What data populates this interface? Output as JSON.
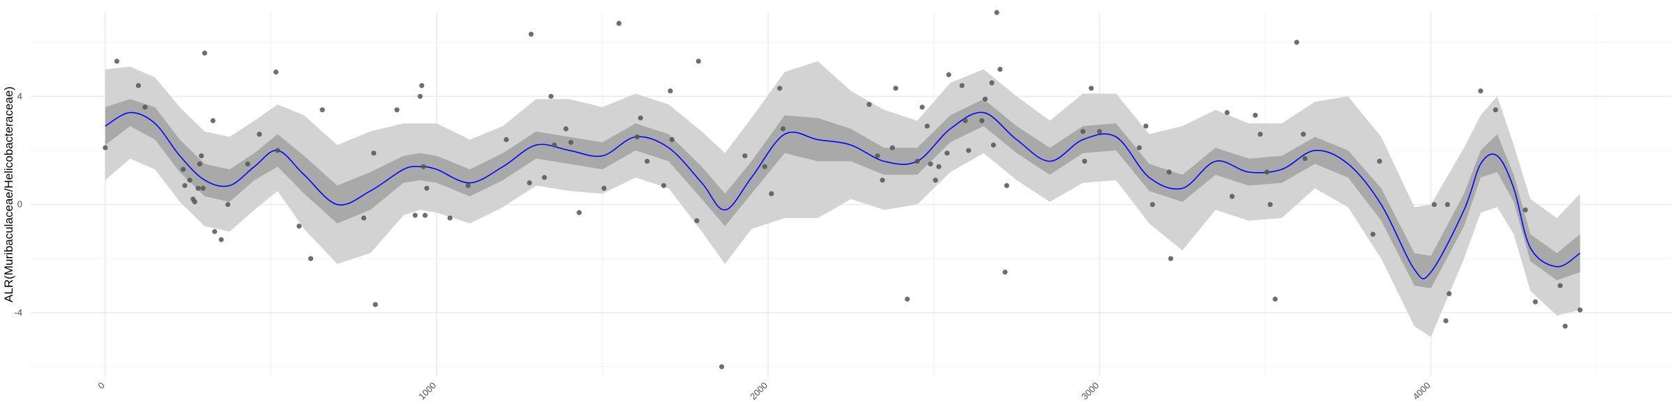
{
  "chart_data": {
    "type": "scatter",
    "title": "",
    "xlabel": "",
    "ylabel": "ALR(Muribaculaceae/Helicobacteraceae)",
    "xlim": [
      -225,
      4725
    ],
    "ylim": [
      -6.35,
      7.1
    ],
    "x_ticks": [
      0,
      1000,
      2000,
      3000,
      4000
    ],
    "x_tick_labels": [
      "0",
      "1000",
      "2000",
      "3000",
      "4000"
    ],
    "y_ticks": [
      -4,
      0,
      4
    ],
    "y_tick_labels": [
      "-4",
      "0",
      "4"
    ],
    "grid": true,
    "colors": {
      "points": "#555555",
      "smooth_line": "#0000ff",
      "inner_band": "#a9a9a9",
      "outer_band": "#d3d3d3",
      "grid": "#ebebeb"
    },
    "points": [
      [
        0,
        2.1
      ],
      [
        35,
        5.3
      ],
      [
        100,
        4.4
      ],
      [
        120,
        3.6
      ],
      [
        235,
        1.3
      ],
      [
        240,
        0.7
      ],
      [
        255,
        0.9
      ],
      [
        265,
        0.2
      ],
      [
        270,
        0.1
      ],
      [
        280,
        0.6
      ],
      [
        285,
        1.5
      ],
      [
        290,
        1.8
      ],
      [
        295,
        0.6
      ],
      [
        300,
        5.6
      ],
      [
        325,
        3.1
      ],
      [
        330,
        -1.0
      ],
      [
        350,
        -1.3
      ],
      [
        370,
        0.0
      ],
      [
        430,
        1.5
      ],
      [
        465,
        2.6
      ],
      [
        515,
        4.9
      ],
      [
        520,
        2.0
      ],
      [
        585,
        -0.8
      ],
      [
        620,
        -2.0
      ],
      [
        655,
        3.5
      ],
      [
        780,
        -0.5
      ],
      [
        810,
        1.9
      ],
      [
        815,
        -3.7
      ],
      [
        880,
        3.5
      ],
      [
        935,
        -0.4
      ],
      [
        950,
        4.0
      ],
      [
        955,
        4.4
      ],
      [
        960,
        1.4
      ],
      [
        965,
        -0.4
      ],
      [
        970,
        0.6
      ],
      [
        1040,
        -0.5
      ],
      [
        1095,
        0.7
      ],
      [
        1210,
        2.4
      ],
      [
        1280,
        0.8
      ],
      [
        1285,
        6.3
      ],
      [
        1325,
        1.0
      ],
      [
        1345,
        4.0
      ],
      [
        1355,
        2.2
      ],
      [
        1390,
        2.8
      ],
      [
        1405,
        2.3
      ],
      [
        1430,
        -0.3
      ],
      [
        1505,
        0.6
      ],
      [
        1550,
        6.7
      ],
      [
        1605,
        2.5
      ],
      [
        1615,
        3.2
      ],
      [
        1635,
        1.6
      ],
      [
        1685,
        0.7
      ],
      [
        1705,
        4.2
      ],
      [
        1710,
        2.4
      ],
      [
        1785,
        -0.6
      ],
      [
        1790,
        5.3
      ],
      [
        1860,
        -6.0
      ],
      [
        1930,
        1.8
      ],
      [
        1990,
        1.4
      ],
      [
        2010,
        0.4
      ],
      [
        2035,
        4.3
      ],
      [
        2045,
        2.8
      ],
      [
        2305,
        3.7
      ],
      [
        2330,
        1.8
      ],
      [
        2345,
        0.9
      ],
      [
        2375,
        2.1
      ],
      [
        2385,
        4.3
      ],
      [
        2420,
        -3.5
      ],
      [
        2450,
        1.6
      ],
      [
        2465,
        3.6
      ],
      [
        2480,
        2.9
      ],
      [
        2490,
        1.5
      ],
      [
        2505,
        0.9
      ],
      [
        2515,
        1.4
      ],
      [
        2540,
        1.9
      ],
      [
        2545,
        4.8
      ],
      [
        2585,
        4.4
      ],
      [
        2595,
        3.1
      ],
      [
        2605,
        2.0
      ],
      [
        2645,
        3.1
      ],
      [
        2655,
        3.9
      ],
      [
        2675,
        4.5
      ],
      [
        2680,
        2.2
      ],
      [
        2690,
        7.1
      ],
      [
        2700,
        5.0
      ],
      [
        2715,
        -2.5
      ],
      [
        2720,
        0.7
      ],
      [
        2950,
        2.7
      ],
      [
        2955,
        1.6
      ],
      [
        2975,
        4.3
      ],
      [
        3000,
        2.7
      ],
      [
        3120,
        2.1
      ],
      [
        3140,
        2.9
      ],
      [
        3160,
        0.0
      ],
      [
        3210,
        1.2
      ],
      [
        3215,
        -2.0
      ],
      [
        3385,
        3.4
      ],
      [
        3400,
        0.3
      ],
      [
        3470,
        3.3
      ],
      [
        3485,
        2.6
      ],
      [
        3505,
        1.2
      ],
      [
        3515,
        0.0
      ],
      [
        3530,
        -3.5
      ],
      [
        3595,
        6.0
      ],
      [
        3615,
        2.6
      ],
      [
        3620,
        1.7
      ],
      [
        3825,
        -1.1
      ],
      [
        3845,
        1.6
      ],
      [
        4010,
        0.0
      ],
      [
        4045,
        -4.3
      ],
      [
        4050,
        0.0
      ],
      [
        4055,
        -3.3
      ],
      [
        4150,
        4.2
      ],
      [
        4195,
        3.5
      ],
      [
        4285,
        -0.2
      ],
      [
        4315,
        -3.6
      ],
      [
        4390,
        -3.0
      ],
      [
        4405,
        -4.5
      ],
      [
        4450,
        -3.9
      ]
    ],
    "smooth_line": {
      "x": [
        0,
        75,
        150,
        225,
        300,
        375,
        450,
        520,
        600,
        700,
        800,
        900,
        950,
        1000,
        1100,
        1200,
        1300,
        1400,
        1500,
        1600,
        1700,
        1800,
        1870,
        1950,
        2050,
        2150,
        2250,
        2350,
        2450,
        2550,
        2650,
        2750,
        2850,
        2950,
        3050,
        3150,
        3250,
        3350,
        3450,
        3550,
        3650,
        3750,
        3850,
        3950,
        4000,
        4100,
        4150,
        4200,
        4250,
        4300,
        4380,
        4450
      ],
      "y": [
        2.9,
        3.4,
        3.0,
        1.8,
        0.9,
        0.7,
        1.4,
        2.0,
        1.1,
        0.0,
        0.5,
        1.3,
        1.4,
        1.3,
        0.8,
        1.4,
        2.2,
        2.0,
        1.8,
        2.5,
        2.1,
        0.8,
        -0.2,
        1.0,
        2.6,
        2.4,
        2.2,
        1.6,
        1.6,
        2.8,
        3.4,
        2.4,
        1.6,
        2.4,
        2.5,
        1.0,
        0.6,
        1.6,
        1.2,
        1.3,
        2.0,
        1.5,
        0.0,
        -2.4,
        -2.5,
        -0.2,
        1.5,
        1.8,
        0.6,
        -1.6,
        -2.3,
        -1.8
      ]
    },
    "inner_band": {
      "x": [
        0,
        75,
        150,
        225,
        300,
        375,
        450,
        520,
        600,
        700,
        800,
        900,
        950,
        1000,
        1100,
        1200,
        1300,
        1400,
        1500,
        1600,
        1700,
        1800,
        1870,
        1950,
        2050,
        2150,
        2250,
        2350,
        2450,
        2550,
        2650,
        2750,
        2850,
        2950,
        3050,
        3150,
        3250,
        3350,
        3450,
        3550,
        3650,
        3750,
        3850,
        3950,
        4000,
        4100,
        4150,
        4200,
        4250,
        4300,
        4380,
        4450
      ],
      "lower": [
        2.2,
        2.9,
        2.4,
        1.2,
        0.3,
        0.1,
        0.9,
        1.4,
        0.4,
        -0.7,
        -0.2,
        0.8,
        0.9,
        0.8,
        0.3,
        0.9,
        1.7,
        1.5,
        1.3,
        2.0,
        1.6,
        0.2,
        -0.8,
        0.4,
        1.9,
        1.6,
        1.6,
        1.1,
        1.1,
        2.3,
        2.9,
        1.9,
        1.1,
        1.9,
        2.0,
        0.5,
        0.1,
        1.1,
        0.7,
        0.8,
        1.5,
        1.0,
        -0.6,
        -3.0,
        -3.1,
        -0.8,
        1.0,
        1.2,
        0.1,
        -2.1,
        -2.8,
        -2.5
      ],
      "upper": [
        3.6,
        3.9,
        3.6,
        2.4,
        1.5,
        1.3,
        1.9,
        2.6,
        1.8,
        0.7,
        1.2,
        1.8,
        1.9,
        1.8,
        1.3,
        1.9,
        2.7,
        2.5,
        2.3,
        3.0,
        2.6,
        1.4,
        0.4,
        1.6,
        3.3,
        3.2,
        2.8,
        2.1,
        2.1,
        3.3,
        3.9,
        2.9,
        2.1,
        2.9,
        3.0,
        1.5,
        1.1,
        2.1,
        1.7,
        1.8,
        2.5,
        2.0,
        0.6,
        -1.8,
        -1.9,
        0.4,
        2.0,
        2.6,
        1.1,
        -1.1,
        -1.8,
        -1.1
      ]
    },
    "outer_band": {
      "x": [
        0,
        75,
        150,
        225,
        300,
        375,
        450,
        520,
        600,
        700,
        800,
        900,
        950,
        1000,
        1100,
        1200,
        1300,
        1400,
        1500,
        1600,
        1700,
        1800,
        1870,
        1950,
        2050,
        2150,
        2250,
        2350,
        2450,
        2550,
        2650,
        2750,
        2850,
        2950,
        3050,
        3150,
        3250,
        3350,
        3450,
        3550,
        3650,
        3750,
        3850,
        3950,
        4000,
        4100,
        4150,
        4200,
        4250,
        4300,
        4380,
        4450
      ],
      "lower": [
        0.9,
        1.7,
        1.3,
        0.1,
        -0.8,
        -1.0,
        -0.2,
        0.5,
        -0.9,
        -2.2,
        -1.8,
        -0.4,
        -0.2,
        -0.3,
        -0.7,
        -0.1,
        0.7,
        0.5,
        0.4,
        1.0,
        0.6,
        -1.0,
        -2.2,
        -0.9,
        -0.5,
        -0.5,
        0.2,
        -0.2,
        0.0,
        1.2,
        1.9,
        0.9,
        0.1,
        0.8,
        0.9,
        -0.7,
        -1.7,
        -0.2,
        -0.6,
        -0.5,
        0.6,
        -0.1,
        -2.0,
        -4.5,
        -4.9,
        -2.0,
        -0.3,
        -0.1,
        -1.1,
        -3.2,
        -4.1,
        -3.9
      ],
      "upper": [
        5.0,
        5.1,
        4.7,
        3.6,
        2.7,
        2.5,
        3.1,
        3.7,
        3.3,
        2.2,
        2.7,
        3.0,
        3.0,
        3.0,
        2.4,
        2.9,
        3.9,
        3.9,
        3.6,
        4.1,
        3.7,
        2.7,
        1.9,
        3.2,
        4.9,
        5.3,
        4.2,
        3.5,
        3.1,
        4.5,
        5.0,
        4.0,
        3.1,
        4.1,
        4.1,
        2.6,
        2.9,
        3.5,
        3.0,
        3.0,
        3.8,
        4.0,
        2.5,
        -0.1,
        0.0,
        2.1,
        3.3,
        4.0,
        2.2,
        0.2,
        -0.5,
        0.4
      ]
    }
  }
}
